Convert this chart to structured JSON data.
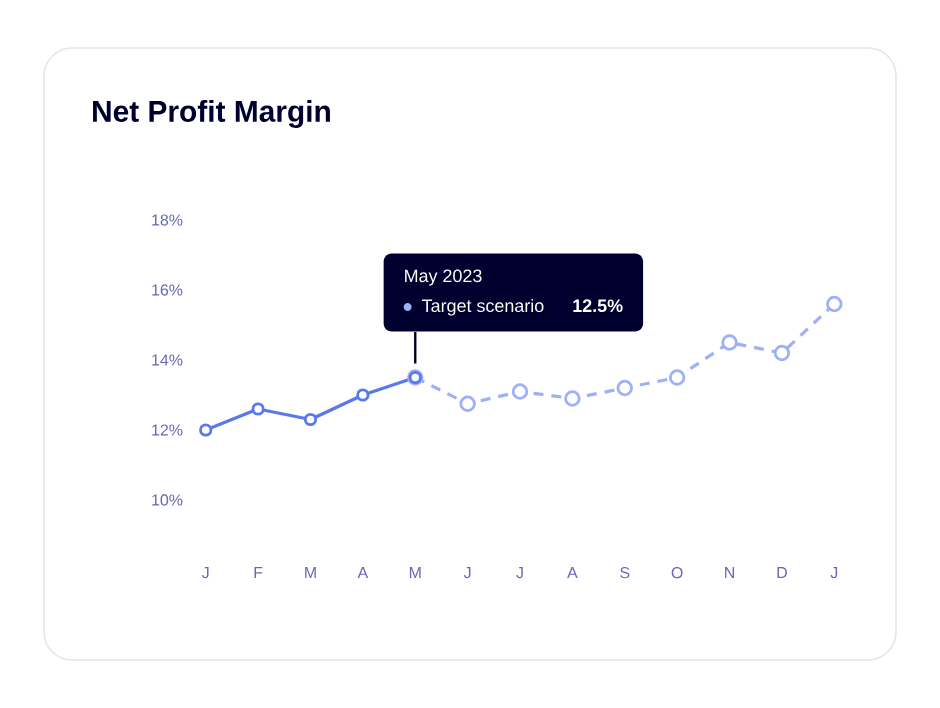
{
  "chart_data": {
    "type": "line",
    "title": "Net Profit Margin",
    "categories": [
      "J",
      "F",
      "M",
      "A",
      "M",
      "J",
      "J",
      "A",
      "S",
      "O",
      "N",
      "D",
      "J"
    ],
    "series": [
      {
        "color": "#5a78ee",
        "line_style": "solid",
        "values": [
          12.0,
          12.6,
          12.3,
          13.0,
          13.5,
          null,
          null,
          null,
          null,
          null,
          null,
          null,
          null
        ]
      },
      {
        "name": "Target scenario",
        "color": "#9eb0f7",
        "line_style": "dashed",
        "values": [
          null,
          null,
          null,
          null,
          13.5,
          12.75,
          13.1,
          12.9,
          13.2,
          13.5,
          14.5,
          14.2,
          15.6
        ]
      }
    ],
    "annotations": [
      "May 2023",
      "12.5%"
    ],
    "ylim": [
      10,
      18
    ],
    "yticks": [
      {
        "value": 10,
        "label": "10%"
      },
      {
        "value": 12,
        "label": "12%"
      },
      {
        "value": 14,
        "label": "14%"
      },
      {
        "value": 16,
        "label": "16%"
      },
      {
        "value": 18,
        "label": "18%"
      }
    ],
    "marker": "circle",
    "legend": "top"
  }
}
